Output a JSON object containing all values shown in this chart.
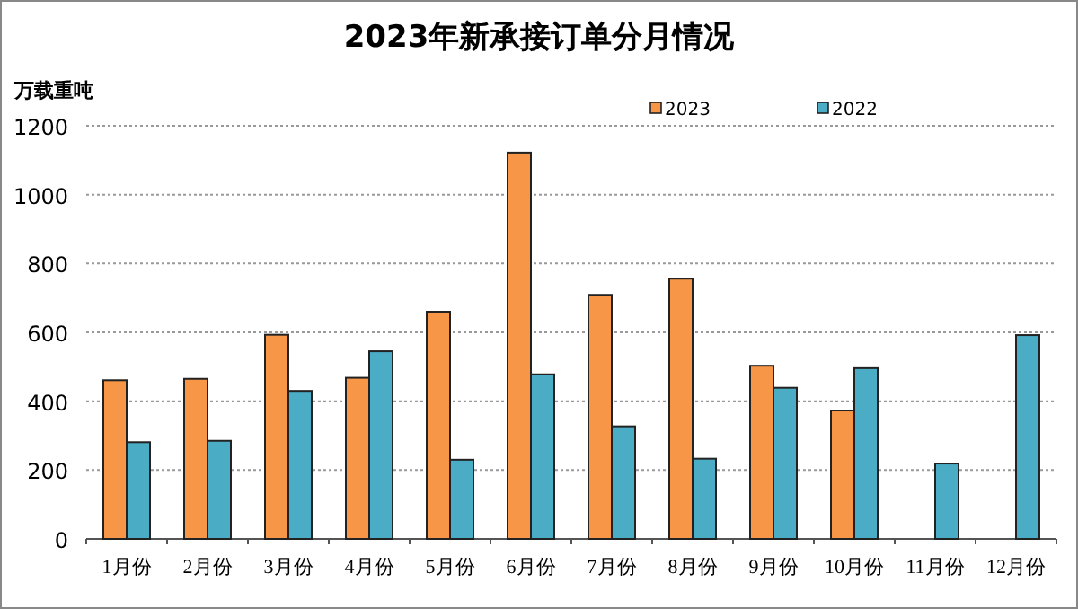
{
  "chart_data": {
    "type": "bar",
    "title": "2023年新承接订单分月情况",
    "ylabel": "万载重吨",
    "categories": [
      "1月份",
      "2月份",
      "3月份",
      "4月份",
      "5月份",
      "6月份",
      "7月份",
      "8月份",
      "9月份",
      "10月份",
      "11月份",
      "12月份"
    ],
    "series": [
      {
        "name": "2023",
        "color": "#f79646",
        "values": [
          461,
          465,
          593,
          468,
          660,
          1122,
          709,
          756,
          503,
          373,
          null,
          null
        ]
      },
      {
        "name": "2022",
        "color": "#4bacc6",
        "values": [
          281,
          285,
          430,
          545,
          230,
          478,
          327,
          233,
          439,
          496,
          219,
          592
        ]
      }
    ],
    "ylim": [
      0,
      1200
    ],
    "yticks": [
      0,
      200,
      400,
      600,
      800,
      1000,
      1200
    ],
    "grid": "y",
    "legend": "top right"
  }
}
